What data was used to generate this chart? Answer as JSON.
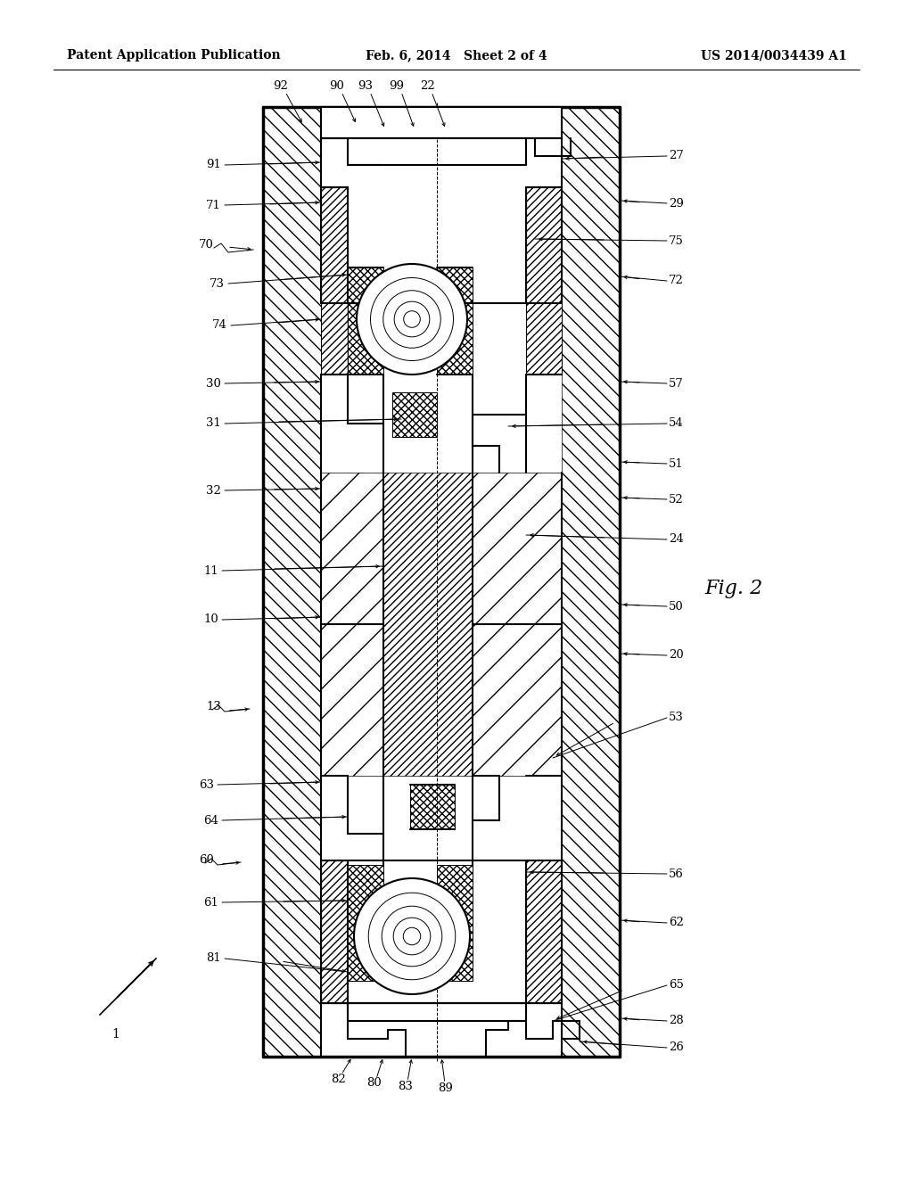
{
  "title_left": "Patent Application Publication",
  "title_mid": "Feb. 6, 2014   Sheet 2 of 4",
  "title_right": "US 2014/0034439 A1",
  "fig_label": "Fig. 2",
  "bg_color": "#ffffff",
  "line_color": "#000000"
}
